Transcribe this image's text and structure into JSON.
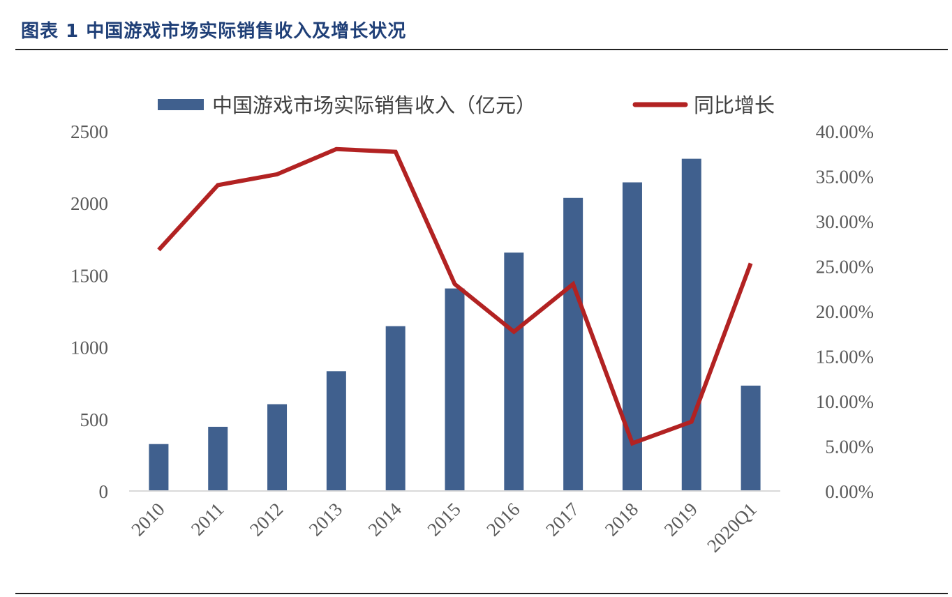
{
  "figure_title": "图表 1 中国游戏市场实际销售收入及增长状况",
  "colors": {
    "bar": "#40608e",
    "line": "#b22222",
    "title": "#1f3f77",
    "axis": "#d9d9d9",
    "tick": "#595959"
  },
  "chart_data": {
    "type": "bar",
    "categories": [
      "2010",
      "2011",
      "2012",
      "2013",
      "2014",
      "2015",
      "2016",
      "2017",
      "2018",
      "2019",
      "2020Q1"
    ],
    "series": [
      {
        "name": "中国游戏市场实际销售收入（亿元）",
        "type": "bar",
        "axis": "left",
        "values": [
          326,
          446,
          603,
          832,
          1145,
          1407,
          1656,
          2036,
          2144,
          2308,
          732
        ]
      },
      {
        "name": "同比增长",
        "type": "line",
        "axis": "right",
        "values": [
          0.268,
          0.34,
          0.352,
          0.38,
          0.377,
          0.23,
          0.177,
          0.23,
          0.053,
          0.077,
          0.253
        ]
      }
    ],
    "y_left": {
      "min": 0,
      "max": 2500,
      "ticks": [
        "0",
        "500",
        "1000",
        "1500",
        "2000",
        "2500"
      ]
    },
    "y_right": {
      "min": 0,
      "max": 0.4,
      "ticks": [
        "0.00%",
        "5.00%",
        "10.00%",
        "15.00%",
        "20.00%",
        "25.00%",
        "30.00%",
        "35.00%",
        "40.00%"
      ]
    },
    "grid": false,
    "legend_position": "top"
  }
}
